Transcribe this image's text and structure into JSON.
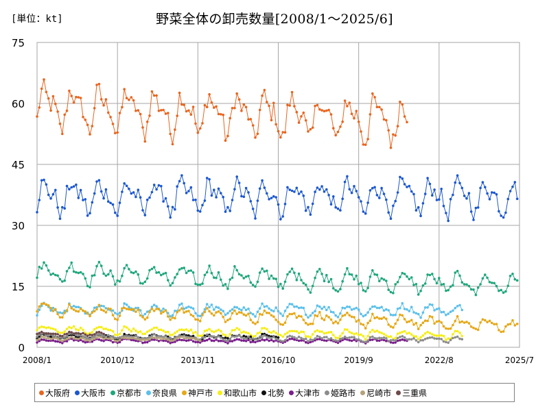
{
  "unit_label": "[単位：kt]",
  "chart_data": {
    "type": "line",
    "title": "野菜全体の卸売数量[2008/1～2025/6]",
    "xlabel": "",
    "ylabel": "",
    "ylim": [
      0,
      75
    ],
    "yticks": [
      0,
      15,
      30,
      45,
      60,
      75
    ],
    "x_range": [
      "2008/1",
      "2025/7"
    ],
    "xticks": [
      "2008/1",
      "2010/12",
      "2013/11",
      "2016/10",
      "2019/9",
      "2022/8",
      "2025/7"
    ],
    "grid": true,
    "legend_position": "bottom",
    "series": [
      {
        "name": "大阪府",
        "color": "#E8651F",
        "start": "2008/1",
        "end": "2021/6",
        "base": 59,
        "amp": 4.0,
        "trend": -0.02,
        "noise": 2.5
      },
      {
        "name": "大阪市",
        "color": "#1B57D0",
        "start": "2008/1",
        "end": "2025/6",
        "base": 37,
        "amp": 3.0,
        "trend": 0.0,
        "noise": 2.0
      },
      {
        "name": "京都市",
        "color": "#1FA77C",
        "start": "2008/1",
        "end": "2025/6",
        "base": 18.5,
        "amp": 1.8,
        "trend": -0.015,
        "noise": 1.0
      },
      {
        "name": "奈良県",
        "color": "#5BC0EB",
        "start": "2008/1",
        "end": "2023/6",
        "base": 9.2,
        "amp": 1.0,
        "trend": 0.0,
        "noise": 0.6
      },
      {
        "name": "神戸市",
        "color": "#E6A817",
        "start": "2008/1",
        "end": "2025/6",
        "base": 9.5,
        "amp": 1.0,
        "trend": -0.02,
        "noise": 0.7
      },
      {
        "name": "和歌山市",
        "color": "#F5EE18",
        "start": "2008/1",
        "end": "2023/6",
        "base": 4.4,
        "amp": 0.7,
        "trend": -0.008,
        "noise": 0.4
      },
      {
        "name": "北勢",
        "color": "#111111",
        "start": "2008/1",
        "end": "2016/10",
        "base": 2.6,
        "amp": 0.4,
        "trend": 0.0,
        "noise": 0.3
      },
      {
        "name": "大津市",
        "color": "#7A1E8C",
        "start": "2008/1",
        "end": "2021/6",
        "base": 1.6,
        "amp": 0.3,
        "trend": 0.0,
        "noise": 0.2
      },
      {
        "name": "姫路市",
        "color": "#8C8C8C",
        "start": "2008/1",
        "end": "2023/6",
        "base": 2.8,
        "amp": 0.4,
        "trend": -0.005,
        "noise": 0.3
      },
      {
        "name": "尼崎市",
        "color": "#B5A27A",
        "start": "2008/1",
        "end": "2013/12",
        "base": 2.1,
        "amp": 0.3,
        "trend": 0.0,
        "noise": 0.2
      },
      {
        "name": "三重県",
        "color": "#6E4A4A",
        "start": "2008/1",
        "end": "2010/6",
        "base": 3.3,
        "amp": 0.3,
        "trend": 0.0,
        "noise": 0.2
      }
    ]
  }
}
